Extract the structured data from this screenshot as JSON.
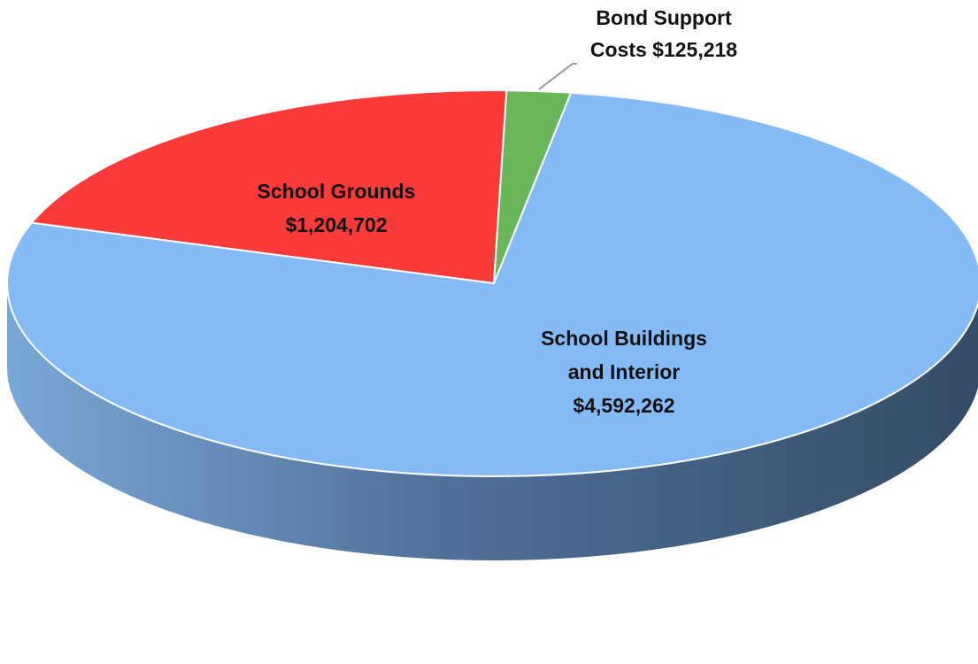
{
  "chart_data": {
    "type": "pie",
    "style": "3d",
    "title": "",
    "slices": [
      {
        "name": "School Buildings and Interior",
        "value": 4592262,
        "label_lines": [
          "School Buildings",
          "and Interior",
          "$4,592,262"
        ],
        "color": "#84BBF6",
        "side_color_light": "#7AA7D6",
        "side_color_dark": "#344C66"
      },
      {
        "name": "School Grounds",
        "value": 1204702,
        "label_lines": [
          "School Grounds",
          "$1,204,702"
        ],
        "color": "#FB3A3A"
      },
      {
        "name": "Bond Support Costs",
        "value": 125218,
        "label_lines": [
          "Bond Support",
          "Costs $125,218"
        ],
        "color": "#6BB65A"
      }
    ]
  }
}
